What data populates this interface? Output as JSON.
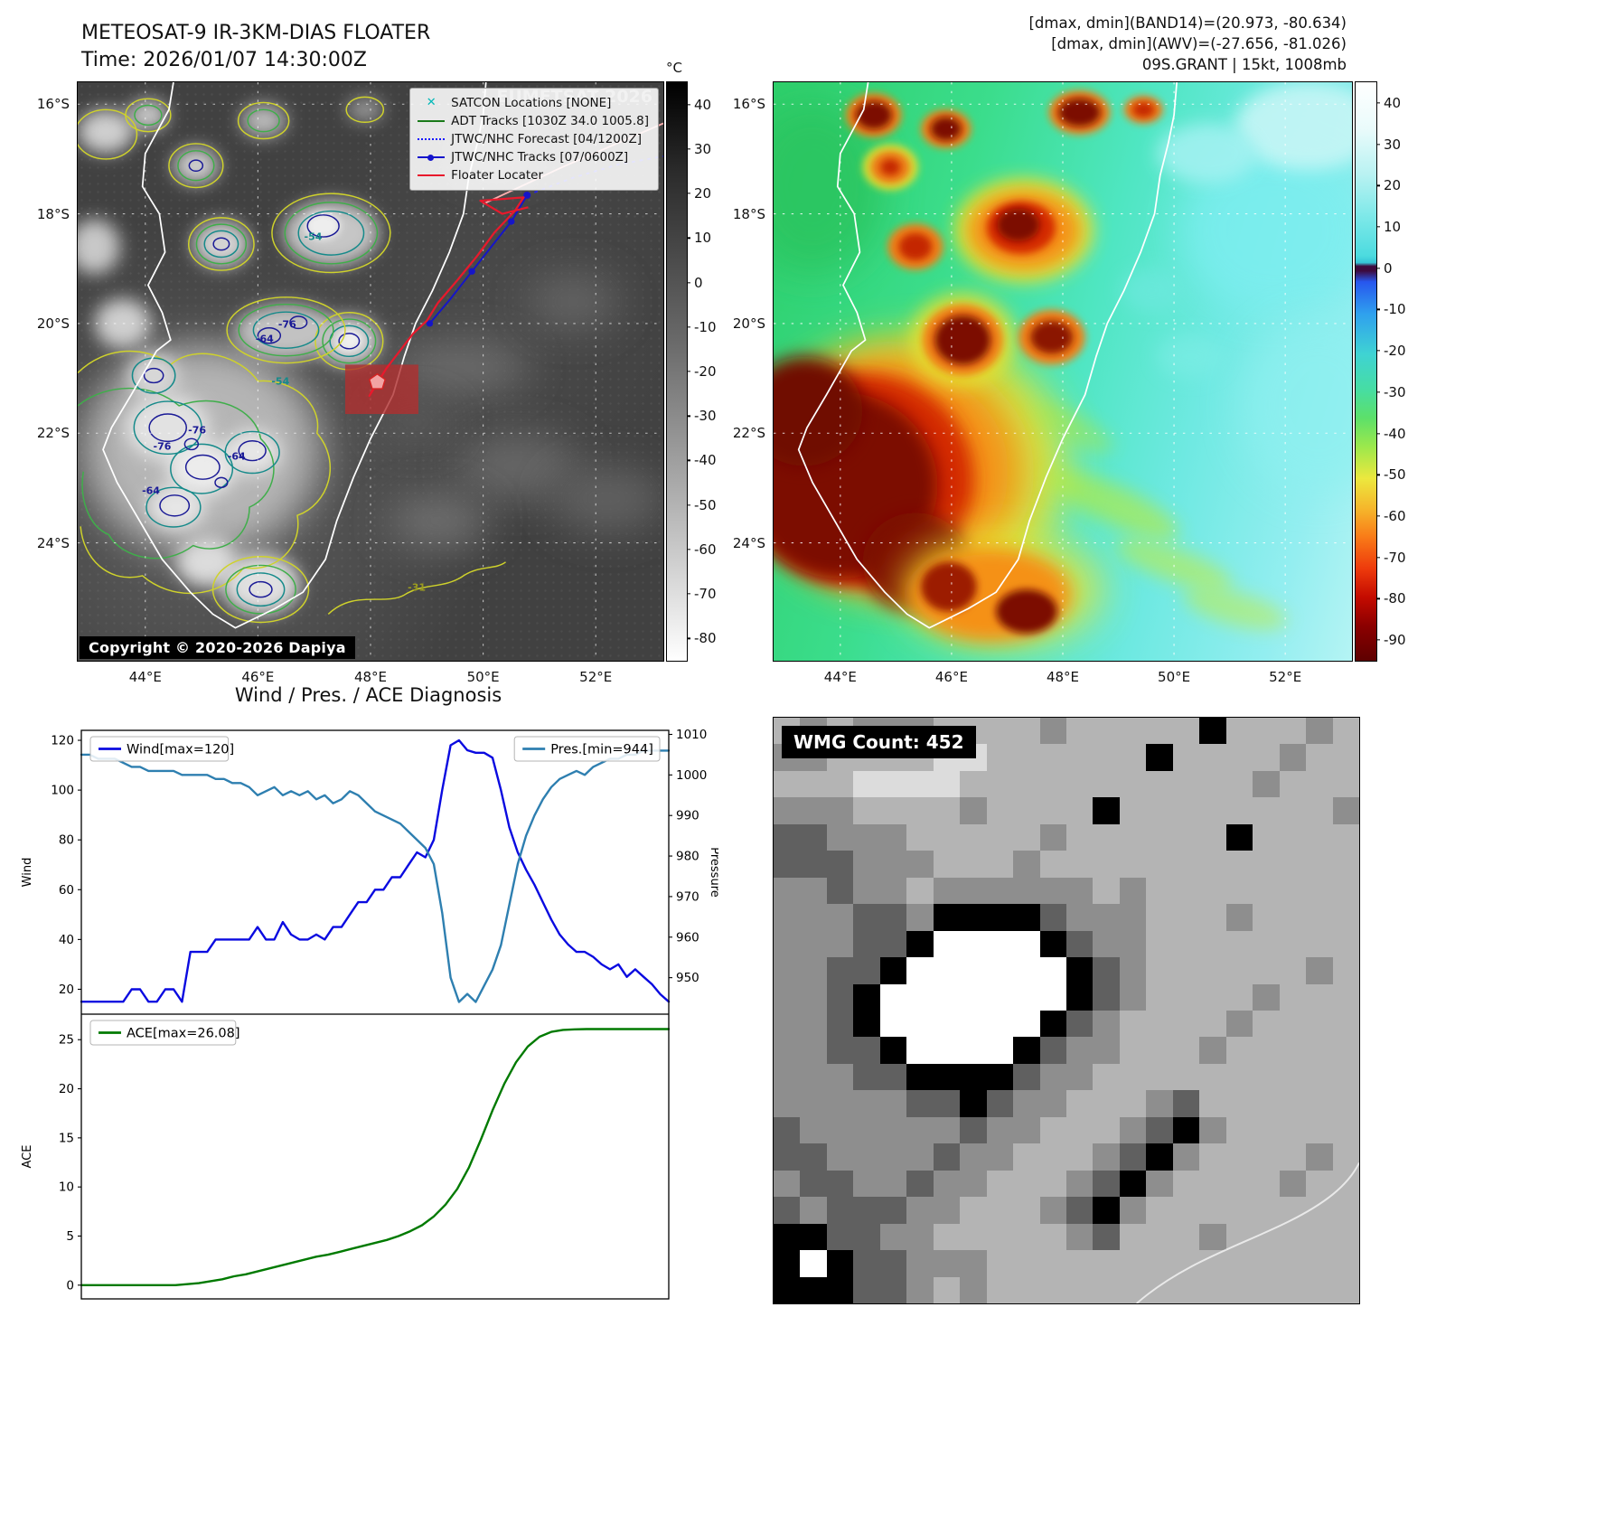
{
  "header": {
    "title_line1": "METEOSAT-9 IR-3KM-DIAS FLOATER",
    "title_line2": "Time: 2026/01/07 14:30:00Z",
    "right_line1": "[dmax, dmin](BAND14)=(20.973, -80.634)",
    "right_line2": "[dmax, dmin](AWV)=(-27.656, -81.026)",
    "right_line3": "09S.GRANT | 15kt, 1008mb"
  },
  "ir_panel": {
    "watermark": "EUMETSAT 2026",
    "copyright": "Copyright © 2020-2026 Dapiya",
    "legend_items": [
      {
        "label": "SATCON Locations [NONE]",
        "marker": "x",
        "color": "#00b8b8"
      },
      {
        "label": "ADT Tracks [1030Z 34.0 1005.8]",
        "marker": "line",
        "color": "#1a7a1a"
      },
      {
        "label": "JTWC/NHC Forecast [04/1200Z]",
        "marker": "dotted",
        "color": "#1414ff"
      },
      {
        "label": "JTWC/NHC Tracks [07/0600Z]",
        "marker": "line-dot",
        "color": "#1414cc"
      },
      {
        "label": "Floater Locater",
        "marker": "line",
        "color": "#e8192c"
      }
    ],
    "colorbar": {
      "unit": "°C",
      "vmax": 45,
      "vmin": -85,
      "ticks": [
        40,
        30,
        20,
        10,
        0,
        -10,
        -20,
        -30,
        -40,
        -50,
        -60,
        -70,
        -80
      ]
    },
    "lat_ticks": [
      "16°S",
      "18°S",
      "20°S",
      "22°S",
      "24°S"
    ],
    "lon_ticks": [
      "44°E",
      "46°E",
      "48°E",
      "50°E",
      "52°E"
    ],
    "contour_labels": [
      {
        "text": "-54",
        "lon": 46.98,
        "lat": 18.42,
        "color": "#158a8a"
      },
      {
        "text": "-64",
        "lon": 46.12,
        "lat": 20.28,
        "color": "#1a1a96"
      },
      {
        "text": "-76",
        "lon": 46.52,
        "lat": 20.02,
        "color": "#1a1a96"
      },
      {
        "text": "-76",
        "lon": 44.92,
        "lat": 21.95,
        "color": "#1a1a96"
      },
      {
        "text": "-64",
        "lon": 45.62,
        "lat": 22.42,
        "color": "#1a1a96"
      },
      {
        "text": "-76",
        "lon": 44.3,
        "lat": 22.25,
        "color": "#1a1a96"
      },
      {
        "text": "-64",
        "lon": 44.1,
        "lat": 23.05,
        "color": "#1a1a96"
      },
      {
        "text": "-54",
        "lon": 46.4,
        "lat": 21.05,
        "color": "#158a8a"
      },
      {
        "text": "-31",
        "lon": 48.82,
        "lat": 24.82,
        "color": "#9c9c1e"
      }
    ]
  },
  "band_panel": {
    "colorbar": {
      "vmax": 45,
      "vmin": -95,
      "ticks": [
        40,
        30,
        20,
        10,
        0,
        -10,
        -20,
        -30,
        -40,
        -50,
        -60,
        -70,
        -80,
        -90
      ]
    },
    "lat_ticks": [
      "16°S",
      "18°S",
      "20°S",
      "22°S",
      "24°S"
    ],
    "lon_tic_note": "",
    "lon_ticks": [
      "44°E",
      "46°E",
      "48°E",
      "50°E",
      "52°E"
    ]
  },
  "diagnosis": {
    "title": "Wind / Pres. / ACE Diagnosis"
  },
  "wmg": {
    "label": "WMG Count: 452",
    "palette": {
      "0": "#000000",
      "1": "#606060",
      "2": "#8e8e8e",
      "3": "#b4b4b4",
      "4": "#dcdcdc",
      "5": "#ffffff"
    },
    "grid": [
      "3232223333233333033323",
      "2233334433333303333233",
      "3334444333333333332333",
      "2223333233330333333332",
      "1122233333233333303333",
      "1112223332333333333333",
      "2212232222223233333333",
      "2221120000122233323333",
      "2221105555012233333333",
      "2211055555501233333323",
      "2210555555501233332333",
      "2210555555012333323333",
      "2211055550122333233333",
      "2221100001223333333333",
      "2222211012233321333333",
      "1222222122333210233333",
      "1122221223332102333323",
      "2112212233321023333233",
      "1211122333210233333333",
      "0011223333321333233333",
      "0501122233333333333333",
      "0001123233333333333333"
    ]
  },
  "chart_data": [
    {
      "id": "windpres",
      "type": "line",
      "title": "Wind / Pres. / ACE Diagnosis",
      "left_axis": {
        "label": "Wind",
        "min": 10,
        "max": 124,
        "ticks": [
          20,
          40,
          60,
          80,
          100,
          120
        ]
      },
      "right_axis": {
        "label": "Pressure",
        "min": 941,
        "max": 1011,
        "ticks": [
          950,
          960,
          970,
          980,
          990,
          1000,
          1010
        ]
      },
      "series": [
        {
          "name": "Wind[max=120]",
          "color": "#0a0ae0",
          "axis": "left",
          "legend": "nw",
          "values": [
            15,
            15,
            15,
            15,
            15,
            15,
            20,
            20,
            15,
            15,
            20,
            20,
            15,
            35,
            35,
            35,
            40,
            40,
            40,
            40,
            40,
            45,
            40,
            40,
            47,
            42,
            40,
            40,
            42,
            40,
            45,
            45,
            50,
            55,
            55,
            60,
            60,
            65,
            65,
            70,
            75,
            73,
            80,
            100,
            118,
            120,
            116,
            115,
            115,
            113,
            100,
            85,
            75,
            68,
            62,
            55,
            48,
            42,
            38,
            35,
            35,
            33,
            30,
            28,
            30,
            25,
            28,
            25,
            22,
            18,
            15
          ]
        },
        {
          "name": "Pres.[min=944]",
          "color": "#2e7fb0",
          "axis": "right",
          "legend": "ne",
          "values": [
            1005,
            1005,
            1004,
            1004,
            1004,
            1003,
            1002,
            1002,
            1001,
            1001,
            1001,
            1001,
            1000,
            1000,
            1000,
            1000,
            999,
            999,
            998,
            998,
            997,
            995,
            996,
            997,
            995,
            996,
            995,
            996,
            994,
            995,
            993,
            994,
            996,
            995,
            993,
            991,
            990,
            989,
            988,
            986,
            984,
            982,
            978,
            966,
            950,
            944,
            946,
            944,
            948,
            952,
            958,
            968,
            978,
            985,
            990,
            994,
            997,
            999,
            1000,
            1001,
            1000,
            1002,
            1003,
            1004,
            1004,
            1005,
            1005,
            1006,
            1006,
            1006,
            1006
          ]
        }
      ]
    },
    {
      "id": "ace",
      "type": "line",
      "left_axis": {
        "label": "ACE",
        "min": -1.4,
        "max": 27.6,
        "ticks": [
          0,
          5,
          10,
          15,
          20,
          25
        ]
      },
      "series": [
        {
          "name": "ACE[max=26.08]",
          "color": "#007a00",
          "axis": "left",
          "legend": "nw",
          "values": [
            0,
            0,
            0,
            0,
            0,
            0,
            0,
            0,
            0,
            0.1,
            0.2,
            0.4,
            0.6,
            0.9,
            1.1,
            1.4,
            1.7,
            2.0,
            2.3,
            2.6,
            2.9,
            3.1,
            3.4,
            3.7,
            4.0,
            4.3,
            4.6,
            5.0,
            5.5,
            6.1,
            7.0,
            8.2,
            9.8,
            12.0,
            14.8,
            17.8,
            20.5,
            22.7,
            24.3,
            25.3,
            25.8,
            26.0,
            26.05,
            26.08,
            26.08,
            26.08,
            26.08,
            26.08,
            26.08,
            26.08,
            26.08
          ]
        }
      ]
    }
  ]
}
